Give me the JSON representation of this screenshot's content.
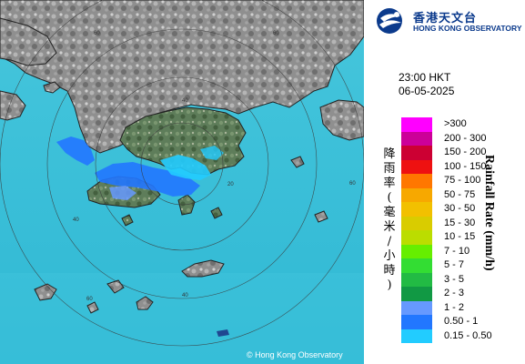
{
  "map": {
    "range_labels": [
      "60",
      "60",
      "60",
      "60",
      "40",
      "40",
      "40",
      "20"
    ],
    "copyright": "© Hong Kong Observatory"
  },
  "logo": {
    "title_cn": "香港天文台",
    "title_en": "HONG KONG OBSERVATORY"
  },
  "observation": {
    "time": "23:00 HKT",
    "date": "06-05-2025"
  },
  "legend": {
    "title_cn": "降雨率(毫米/小時)",
    "title_en": "Rainfall Rate (mm/h)",
    "entries": [
      {
        "label": ">300",
        "color": "#ff00ff"
      },
      {
        "label": "200 - 300",
        "color": "#cc0099"
      },
      {
        "label": "150 - 200",
        "color": "#cc0033"
      },
      {
        "label": "100 - 150",
        "color": "#ee1111"
      },
      {
        "label": "75 - 100",
        "color": "#ff7700"
      },
      {
        "label": "50 - 75",
        "color": "#f7a800"
      },
      {
        "label": "30 - 50",
        "color": "#f2c000"
      },
      {
        "label": "15 - 30",
        "color": "#d9cc00"
      },
      {
        "label": "10 - 15",
        "color": "#bbdd00"
      },
      {
        "label": "7 - 10",
        "color": "#66ee00"
      },
      {
        "label": "5 - 7",
        "color": "#33dd33"
      },
      {
        "label": "3 - 5",
        "color": "#22bb44"
      },
      {
        "label": "2 - 3",
        "color": "#119944"
      },
      {
        "label": "1 - 2",
        "color": "#6699ff"
      },
      {
        "label": "0.50 - 1",
        "color": "#2277ff"
      },
      {
        "label": "0.15 - 0.50",
        "color": "#22ccff"
      }
    ]
  }
}
